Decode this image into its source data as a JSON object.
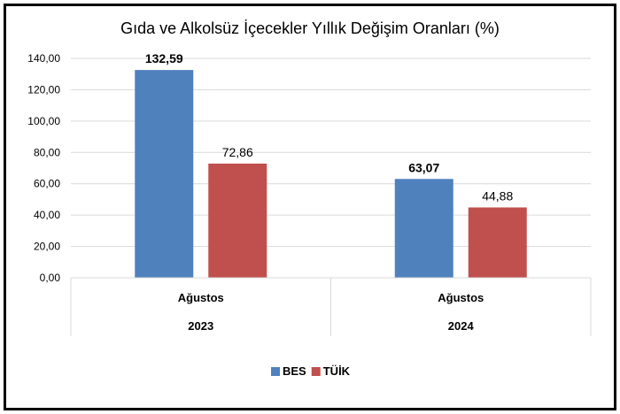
{
  "chart_data": {
    "type": "bar",
    "title": "Gıda ve Alkolsüz İçecekler Yıllık Değişim Oranları (%)",
    "categories": [
      {
        "label": "Ağustos",
        "group": "2023"
      },
      {
        "label": "Ağustos",
        "group": "2024"
      }
    ],
    "series": [
      {
        "name": "BES",
        "color": "#4f81bd",
        "values": [
          132.59,
          63.07
        ],
        "labels": [
          "132,59",
          "63,07"
        ],
        "label_bold": true
      },
      {
        "name": "TÜİK",
        "color": "#c0504d",
        "values": [
          72.86,
          44.88
        ],
        "labels": [
          "72,86",
          "44,88"
        ],
        "label_bold": false
      }
    ],
    "ylim": [
      0,
      140
    ],
    "yticks": [
      "0,00",
      "20,00",
      "40,00",
      "60,00",
      "80,00",
      "100,00",
      "120,00",
      "140,00"
    ],
    "grid": true,
    "legend": "bottom",
    "xlabel": "",
    "ylabel": ""
  }
}
